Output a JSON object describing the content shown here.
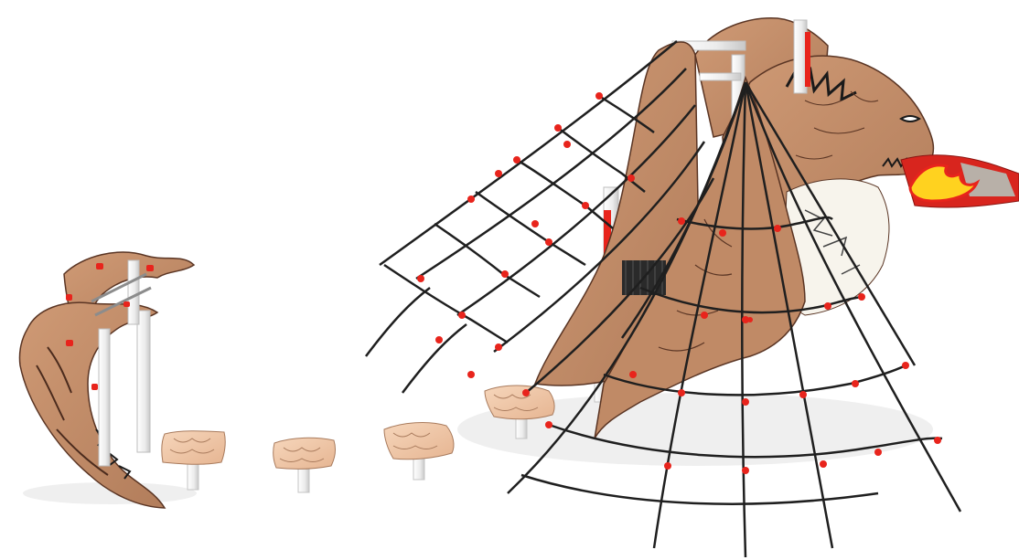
{
  "scene": {
    "colors": {
      "background": "#ffffff",
      "panel_brown": "#c58f6c",
      "panel_brown_dark": "#8c5c40",
      "panel_edge": "#5a3524",
      "post_white": "#f2f2f2",
      "post_shadow": "#c9c9c9",
      "rope_dark": "#1f1f1f",
      "connector_red": "#e8241c",
      "stepping_pad": "#f0c7a6",
      "stepping_pad_lines": "#a97b5d",
      "slide_red": "#d8251e",
      "flame_yellow": "#ffd21f",
      "slide_bed": "#b8b0a8",
      "skeleton_white": "#f7f4ec",
      "shadow": "#e6e6e6"
    },
    "objects": [
      "small-dragon-tail-climber",
      "stepping-stones-row",
      "rope-net-ramp",
      "dragon-head-tower",
      "rope-spider-web-net",
      "red-fire-slide"
    ]
  }
}
